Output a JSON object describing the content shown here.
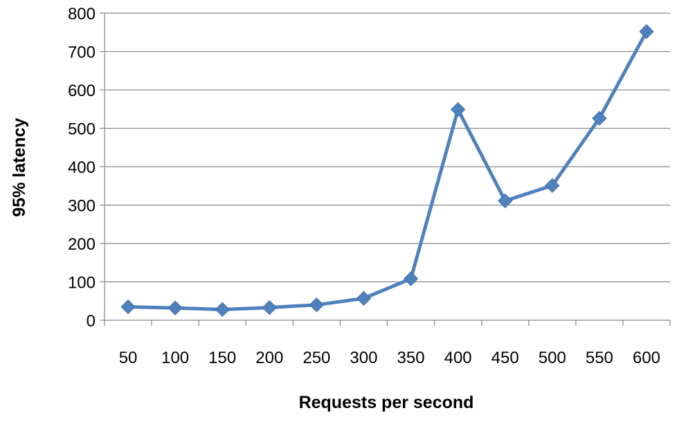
{
  "chart_data": {
    "type": "line",
    "title": "",
    "xlabel": "Requests per second",
    "ylabel": "95% latency",
    "categories": [
      "50",
      "100",
      "150",
      "200",
      "250",
      "300",
      "350",
      "400",
      "450",
      "500",
      "550",
      "600"
    ],
    "series": [
      {
        "values": [
          35,
          32,
          28,
          33,
          40,
          57,
          108,
          549,
          311,
          351,
          526,
          752
        ],
        "color": "#4f81bd",
        "marker": "diamond"
      }
    ],
    "ylim": [
      0,
      800
    ],
    "yticks": [
      0,
      100,
      200,
      300,
      400,
      500,
      600,
      700,
      800
    ],
    "grid": true,
    "legend": "none"
  }
}
